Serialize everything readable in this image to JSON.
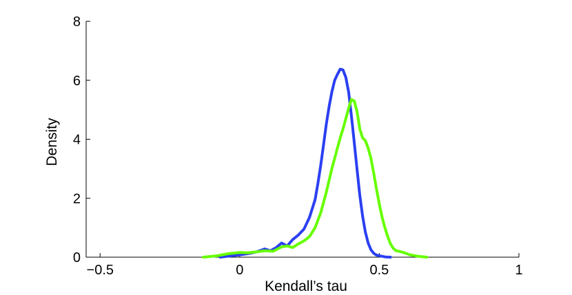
{
  "chart_data": {
    "type": "line",
    "title": "",
    "xlabel": "Kendall’s tau",
    "ylabel": "Density",
    "xlim": [
      -0.55,
      1.0
    ],
    "ylim": [
      0,
      8
    ],
    "x_ticks": [
      -0.5,
      0,
      0.5,
      1
    ],
    "x_tick_labels": [
      "−0.5",
      "0",
      "0.5",
      "1"
    ],
    "y_ticks": [
      0,
      2,
      4,
      6,
      8
    ],
    "y_tick_labels": [
      "0",
      "2",
      "4",
      "6",
      "8"
    ],
    "grid": false,
    "legend": "none",
    "series": [
      {
        "color": "#2b3ff2",
        "x": [
          -0.07,
          -0.03,
          0.0,
          0.03,
          0.06,
          0.09,
          0.11,
          0.13,
          0.15,
          0.17,
          0.19,
          0.21,
          0.23,
          0.25,
          0.27,
          0.28,
          0.29,
          0.3,
          0.31,
          0.32,
          0.33,
          0.34,
          0.35,
          0.36,
          0.37,
          0.38,
          0.39,
          0.4,
          0.41,
          0.42,
          0.43,
          0.44,
          0.45,
          0.46,
          0.47,
          0.48,
          0.49,
          0.5,
          0.51,
          0.52,
          0.54
        ],
        "y": [
          0.0,
          0.05,
          0.08,
          0.12,
          0.18,
          0.28,
          0.22,
          0.32,
          0.48,
          0.38,
          0.6,
          0.75,
          0.95,
          1.35,
          1.95,
          2.5,
          3.1,
          3.8,
          4.5,
          5.1,
          5.6,
          6.0,
          6.2,
          6.38,
          6.35,
          6.1,
          5.6,
          4.8,
          3.9,
          3.0,
          2.1,
          1.4,
          0.85,
          0.48,
          0.25,
          0.13,
          0.07,
          0.05,
          0.03,
          0.01,
          0.0
        ]
      },
      {
        "color": "#66ff00",
        "x": [
          -0.13,
          -0.08,
          -0.04,
          0.0,
          0.03,
          0.06,
          0.09,
          0.12,
          0.15,
          0.17,
          0.19,
          0.21,
          0.23,
          0.25,
          0.27,
          0.29,
          0.3,
          0.31,
          0.32,
          0.33,
          0.34,
          0.35,
          0.36,
          0.37,
          0.38,
          0.39,
          0.4,
          0.41,
          0.42,
          0.43,
          0.44,
          0.45,
          0.46,
          0.47,
          0.48,
          0.49,
          0.5,
          0.51,
          0.52,
          0.53,
          0.54,
          0.55,
          0.56,
          0.57,
          0.59,
          0.61,
          0.64,
          0.67
        ],
        "y": [
          0.0,
          0.05,
          0.12,
          0.16,
          0.15,
          0.18,
          0.22,
          0.2,
          0.35,
          0.38,
          0.33,
          0.45,
          0.55,
          0.7,
          1.0,
          1.5,
          1.85,
          2.2,
          2.6,
          3.0,
          3.35,
          3.7,
          4.05,
          4.35,
          4.7,
          5.05,
          5.35,
          5.3,
          4.95,
          4.35,
          4.05,
          3.95,
          3.7,
          3.35,
          2.85,
          2.3,
          1.8,
          1.35,
          1.0,
          0.7,
          0.45,
          0.3,
          0.22,
          0.2,
          0.15,
          0.08,
          0.03,
          0.0
        ]
      }
    ]
  }
}
